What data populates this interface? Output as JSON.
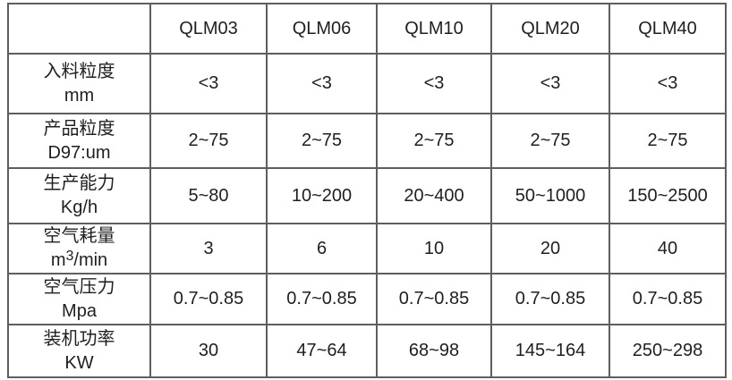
{
  "table": {
    "corner": "",
    "columns": [
      "QLM03",
      "QLM06",
      "QLM10",
      "QLM20",
      "QLM40"
    ],
    "rows": [
      {
        "label": [
          "入料粒度",
          "mm"
        ],
        "values": [
          "<3",
          "<3",
          "<3",
          "<3",
          "<3"
        ]
      },
      {
        "label": [
          "产品粒度",
          "D97:um"
        ],
        "values": [
          "2~75",
          "2~75",
          "2~75",
          "2~75",
          "2~75"
        ]
      },
      {
        "label": [
          "生产能力",
          "Kg/h"
        ],
        "values": [
          "5~80",
          "10~200",
          "20~400",
          "50~1000",
          "150~2500"
        ]
      },
      {
        "label": [
          "空气耗量",
          "m3/min"
        ],
        "label_unit": {
          "pre": "m",
          "sup": "3",
          "post": "/min"
        },
        "values": [
          "3",
          "6",
          "10",
          "20",
          "40"
        ]
      },
      {
        "label": [
          "空气压力",
          "Mpa"
        ],
        "values": [
          "0.7~0.85",
          "0.7~0.85",
          "0.7~0.85",
          "0.7~0.85",
          "0.7~0.85"
        ]
      },
      {
        "label": [
          "装机功率",
          "KW"
        ],
        "values": [
          "30",
          "47~64",
          "68~98",
          "145~164",
          "250~298"
        ]
      }
    ],
    "colors": {
      "border": "#5e5e5e",
      "text": "#1f1f1f",
      "background": "#ffffff"
    }
  }
}
